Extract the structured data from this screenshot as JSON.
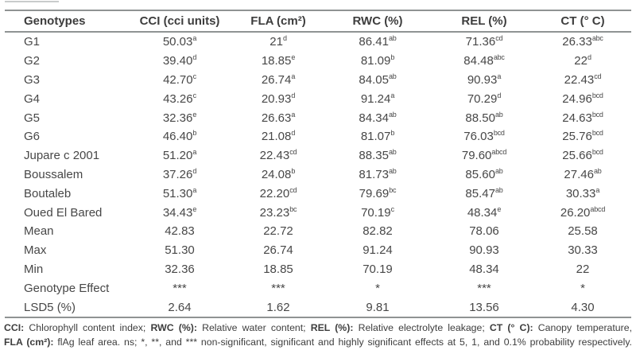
{
  "colors": {
    "rule_gray": "#8f9393",
    "text_gray": "#474747",
    "header_text": "#3d3d3d"
  },
  "table": {
    "headers": [
      "Genotypes",
      "CCI (cci units)",
      "FLA (cm²)",
      "RWC (%)",
      "REL (%)",
      "CT (° C)"
    ],
    "rows": [
      {
        "label": "G1",
        "cells": [
          {
            "v": "50.03",
            "s": "a"
          },
          {
            "v": "21",
            "s": "d"
          },
          {
            "v": "86.41",
            "s": "ab"
          },
          {
            "v": "71.36",
            "s": "cd"
          },
          {
            "v": "26.33",
            "s": "abc"
          }
        ]
      },
      {
        "label": "G2",
        "cells": [
          {
            "v": "39.40",
            "s": "d"
          },
          {
            "v": "18.85",
            "s": "e"
          },
          {
            "v": "81.09",
            "s": "b"
          },
          {
            "v": "84.48",
            "s": "abc"
          },
          {
            "v": "22",
            "s": "d"
          }
        ]
      },
      {
        "label": "G3",
        "cells": [
          {
            "v": "42.70",
            "s": "c"
          },
          {
            "v": "26.74",
            "s": "a"
          },
          {
            "v": "84.05",
            "s": "ab"
          },
          {
            "v": "90.93",
            "s": "a"
          },
          {
            "v": "22.43",
            "s": "cd"
          }
        ]
      },
      {
        "label": "G4",
        "cells": [
          {
            "v": "43.26",
            "s": "c"
          },
          {
            "v": "20.93",
            "s": "d"
          },
          {
            "v": "91.24",
            "s": "a"
          },
          {
            "v": "70.29",
            "s": "d"
          },
          {
            "v": "24.96",
            "s": "bcd"
          }
        ]
      },
      {
        "label": "G5",
        "cells": [
          {
            "v": "32.36",
            "s": "e"
          },
          {
            "v": "26.63",
            "s": "a"
          },
          {
            "v": "84.34",
            "s": "ab"
          },
          {
            "v": "88.50",
            "s": "ab"
          },
          {
            "v": "24.63",
            "s": "bcd"
          }
        ]
      },
      {
        "label": "G6",
        "cells": [
          {
            "v": "46.40",
            "s": "b"
          },
          {
            "v": "21.08",
            "s": "d"
          },
          {
            "v": "81.07",
            "s": "b"
          },
          {
            "v": "76.03",
            "s": "bcd"
          },
          {
            "v": "25.76",
            "s": "bcd"
          }
        ]
      },
      {
        "label": "Jupare c 2001",
        "cells": [
          {
            "v": "51.20",
            "s": "a"
          },
          {
            "v": "22.43",
            "s": "cd"
          },
          {
            "v": "88.35",
            "s": "ab"
          },
          {
            "v": "79.60",
            "s": "abcd"
          },
          {
            "v": "25.66",
            "s": "bcd"
          }
        ]
      },
      {
        "label": "Boussalem",
        "cells": [
          {
            "v": "37.26",
            "s": "d"
          },
          {
            "v": "24.08",
            "s": "b"
          },
          {
            "v": "81.73",
            "s": "ab"
          },
          {
            "v": "85.60",
            "s": "ab"
          },
          {
            "v": "27.46",
            "s": "ab"
          }
        ]
      },
      {
        "label": "Boutaleb",
        "cells": [
          {
            "v": "51.30",
            "s": "a"
          },
          {
            "v": "22.20",
            "s": "cd"
          },
          {
            "v": "79.69",
            "s": "bc"
          },
          {
            "v": "85.47",
            "s": "ab"
          },
          {
            "v": "30.33",
            "s": "a"
          }
        ]
      },
      {
        "label": "Oued El Bared",
        "cells": [
          {
            "v": "34.43",
            "s": "e"
          },
          {
            "v": "23.23",
            "s": "bc"
          },
          {
            "v": "70.19",
            "s": "c"
          },
          {
            "v": "48.34",
            "s": "e"
          },
          {
            "v": "26.20",
            "s": "abcd"
          }
        ]
      },
      {
        "label": "Mean",
        "cells": [
          {
            "v": "42.83"
          },
          {
            "v": "22.72"
          },
          {
            "v": "82.82"
          },
          {
            "v": "78.06"
          },
          {
            "v": "25.58"
          }
        ]
      },
      {
        "label": "Max",
        "cells": [
          {
            "v": "51.30"
          },
          {
            "v": "26.74"
          },
          {
            "v": "91.24"
          },
          {
            "v": "90.93"
          },
          {
            "v": "30.33"
          }
        ]
      },
      {
        "label": "Min",
        "cells": [
          {
            "v": "32.36"
          },
          {
            "v": "18.85"
          },
          {
            "v": "70.19"
          },
          {
            "v": "48.34"
          },
          {
            "v": "22"
          }
        ]
      },
      {
        "label": "Genotype Effect",
        "cells": [
          {
            "v": "***"
          },
          {
            "v": "***"
          },
          {
            "v": "*"
          },
          {
            "v": "***"
          },
          {
            "v": "*"
          }
        ]
      },
      {
        "label": "LSD5 (%)",
        "cells": [
          {
            "v": "2.64"
          },
          {
            "v": "1.62"
          },
          {
            "v": "9.81"
          },
          {
            "v": "13.56"
          },
          {
            "v": "4.30"
          }
        ]
      }
    ]
  },
  "footnote": {
    "lines": [
      [
        {
          "t": "CCI:",
          "b": true
        },
        {
          "t": " Chlorophyll content index; "
        },
        {
          "t": "RWC (%):",
          "b": true
        },
        {
          "t": " Relative water content; "
        },
        {
          "t": "REL (%):",
          "b": true
        },
        {
          "t": " Relative electrolyte leakage; "
        },
        {
          "t": "CT (° C):",
          "b": true
        },
        {
          "t": " Canopy temperature,"
        }
      ],
      [
        {
          "t": "FLA (cm²):",
          "b": true
        },
        {
          "t": " flAg leaf area. ns; *, **, and *** non-significant, significant and highly significant effects at 5, 1, and 0.1% probability respectively."
        }
      ]
    ]
  }
}
